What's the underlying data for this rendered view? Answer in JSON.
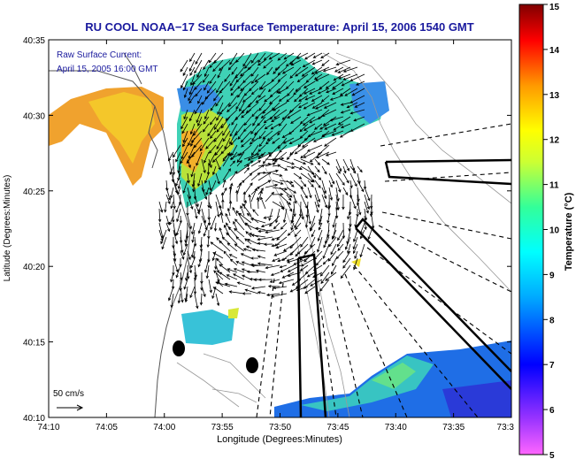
{
  "title": "RU COOL  NOAA−17  Sea Surface Temperature:  April 15, 2006 1540 GMT",
  "annotation": {
    "line1": "Raw Surface Current:",
    "line2": "April 15, 2005 16:00 GMT"
  },
  "scale": {
    "label": "50 cm/s"
  },
  "axes": {
    "xlabel": "Longitude (Degrees:Minutes)",
    "ylabel": "Latitude (Degrees:Minutes)",
    "xticks": [
      "74:10",
      "74:05",
      "74:00",
      "73:55",
      "73:50",
      "73:45",
      "73:40",
      "73:35",
      "73:3"
    ],
    "yticks": [
      "40:35",
      "40:30",
      "40:25",
      "40:20",
      "40:15",
      "40:10"
    ]
  },
  "colorbar": {
    "label": "Temperature (°C)",
    "ticks": [
      "15",
      "14",
      "13",
      "12",
      "11",
      "10",
      "9",
      "8",
      "7",
      "6",
      "5"
    ],
    "colors": {
      "max": "#800000",
      "hot": "#ff0000",
      "warm": "#ffff00",
      "mid": "#00ffff",
      "cool": "#0000ff",
      "min": "#ff00ff"
    }
  },
  "map_colors": {
    "sst_teal": "#39d4c4",
    "sst_yellow": "#c9e22c",
    "sst_orange": "#ee9a2a",
    "sst_blue": "#1e6ae6",
    "arrow": "#000000",
    "contour": "#888888"
  }
}
